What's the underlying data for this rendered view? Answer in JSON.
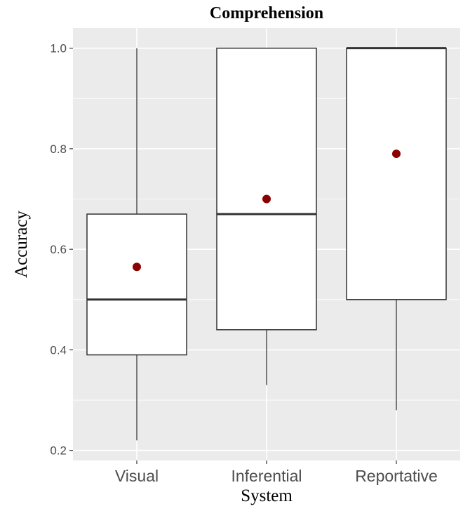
{
  "chart_data": {
    "type": "box",
    "title": "Comprehension",
    "xlabel": "System",
    "ylabel": "Accuracy",
    "ylim": [
      0.18,
      1.04
    ],
    "yticks": [
      0.2,
      0.4,
      0.6,
      0.8,
      1.0
    ],
    "ytick_labels": [
      "0.2",
      "0.4",
      "0.6",
      "0.8",
      "1.0"
    ],
    "grid": true,
    "categories": [
      "Visual",
      "Inferential",
      "Reportative"
    ],
    "boxes": [
      {
        "category": "Visual",
        "min": 0.22,
        "q1": 0.39,
        "median": 0.5,
        "q3": 0.67,
        "max": 1.0,
        "mean": 0.565
      },
      {
        "category": "Inferential",
        "min": 0.33,
        "q1": 0.44,
        "median": 0.67,
        "q3": 1.0,
        "max": 1.0,
        "mean": 0.7
      },
      {
        "category": "Reportative",
        "min": 0.28,
        "q1": 0.5,
        "median": 1.0,
        "q3": 1.0,
        "max": 1.0,
        "mean": 0.79
      }
    ],
    "mean_marker_color": "#8b0000",
    "panel_color": "#ebebeb",
    "grid_color": "#ffffff"
  }
}
